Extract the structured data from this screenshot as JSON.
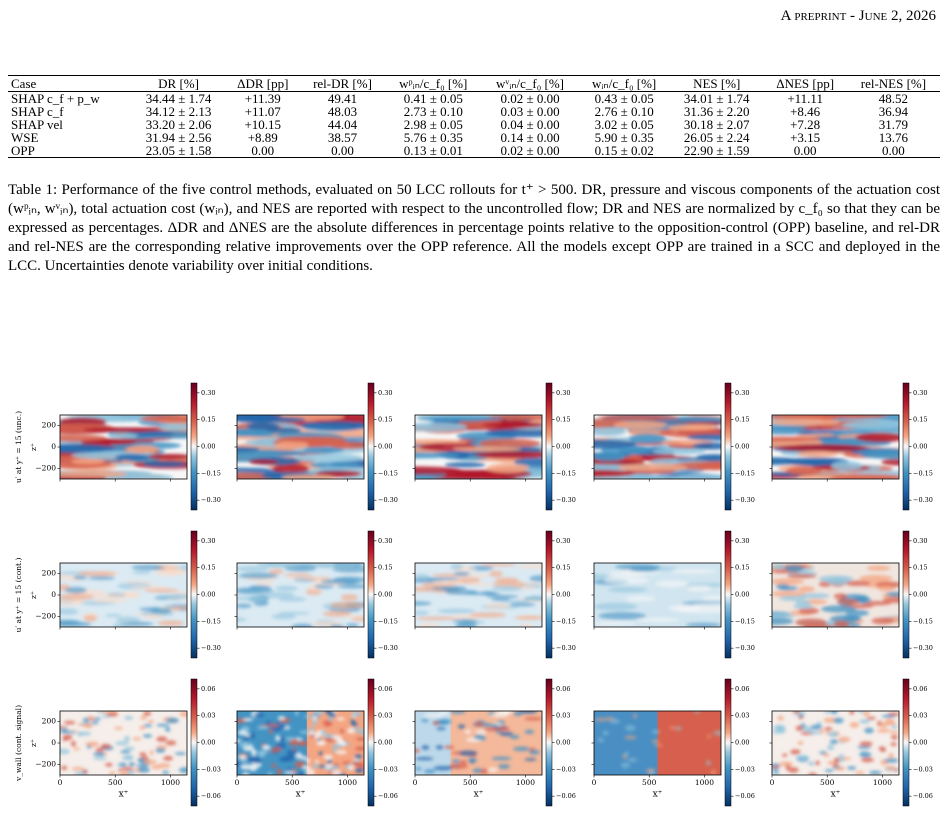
{
  "header": "A preprint - June 2, 2026",
  "table": {
    "columns": [
      "Case",
      "DR [%]",
      "ΔDR [pp]",
      "rel-DR [%]",
      "wᵖᵢₙ/c_f₀ [%]",
      "wᵛᵢₙ/c_f₀ [%]",
      "wᵢₙ/c_f₀ [%]",
      "NES [%]",
      "ΔNES [pp]",
      "rel-NES [%]"
    ],
    "rows": [
      [
        "SHAP c_f + p_w",
        "34.44 ± 1.74",
        "+11.39",
        "49.41",
        "0.41 ± 0.05",
        "0.02 ± 0.00",
        "0.43 ± 0.05",
        "34.01 ± 1.74",
        "+11.11",
        "48.52"
      ],
      [
        "SHAP c_f",
        "34.12 ± 2.13",
        "+11.07",
        "48.03",
        "2.73 ± 0.10",
        "0.03 ± 0.00",
        "2.76 ± 0.10",
        "31.36 ± 2.20",
        "+8.46",
        "36.94"
      ],
      [
        "SHAP vel",
        "33.20 ± 2.06",
        "+10.15",
        "44.04",
        "2.98 ± 0.05",
        "0.04 ± 0.00",
        "3.02 ± 0.05",
        "30.18 ± 2.07",
        "+7.28",
        "31.79"
      ],
      [
        "WSE",
        "31.94 ± 2.56",
        "+8.89",
        "38.57",
        "5.76 ± 0.35",
        "0.14 ± 0.00",
        "5.90 ± 0.35",
        "26.05 ± 2.24",
        "+3.15",
        "13.76"
      ],
      [
        "OPP",
        "23.05 ± 1.58",
        "0.00",
        "0.00",
        "0.13 ± 0.01",
        "0.02 ± 0.00",
        "0.15 ± 0.02",
        "22.90 ± 1.59",
        "0.00",
        "0.00"
      ]
    ],
    "caption": "Table 1: Performance of the five control methods, evaluated on 50 LCC rollouts for t⁺ > 500. DR, pressure and viscous components of the actuation cost (wᵖᵢₙ, wᵛᵢₙ), total actuation cost (wᵢₙ), and NES are reported with respect to the uncontrolled flow; DR and NES are normalized by c_f₀ so that they can be expressed as percentages. ΔDR and ΔNES are the absolute differences in percentage points relative to the opposition-control (OPP) baseline, and rel-DR and rel-NES are the corresponding relative improvements over the OPP reference. All the models except OPP are trained in a SCC and deployed in the LCC. Uncertainties denote variability over initial conditions."
  },
  "figure": {
    "row_labels": [
      "u′ at y⁺ = 15 (unc.)",
      "u′ at y⁺ = 15 (cont.)",
      "v_wall (cont. signal)"
    ],
    "x_label": "x⁺",
    "z_label": "z⁺",
    "xlim": [
      0,
      1150
    ],
    "xticks": [
      0,
      500,
      1000
    ],
    "zlim": [
      -300,
      300
    ],
    "zticks": [
      200,
      0,
      {
        "value": -200,
        "label": "−200"
      }
    ],
    "colorbars": [
      {
        "clim": [
          -0.355,
          0.355
        ],
        "ticks": [
          {
            "value": 0.3,
            "label": "0.30"
          },
          {
            "value": 0.15,
            "label": "0.15"
          },
          {
            "value": 0,
            "label": "0.00"
          },
          {
            "value": -0.15,
            "label": "−0.15"
          },
          {
            "value": -0.3,
            "label": "−0.30"
          }
        ]
      },
      {
        "clim": [
          -0.355,
          0.355
        ],
        "ticks": [
          {
            "value": 0.3,
            "label": "0.30"
          },
          {
            "value": 0.15,
            "label": "0.15"
          },
          {
            "value": 0,
            "label": "0.00"
          },
          {
            "value": -0.15,
            "label": "−0.15"
          },
          {
            "value": -0.3,
            "label": "−0.30"
          }
        ]
      },
      {
        "clim": [
          -0.071,
          0.071
        ],
        "ticks": [
          {
            "value": 0.06,
            "label": "0.06"
          },
          {
            "value": 0.03,
            "label": "0.03"
          },
          {
            "value": 0,
            "label": "0.00"
          },
          {
            "value": -0.03,
            "label": "−0.03"
          },
          {
            "value": -0.06,
            "label": "−0.06"
          }
        ]
      }
    ]
  }
}
